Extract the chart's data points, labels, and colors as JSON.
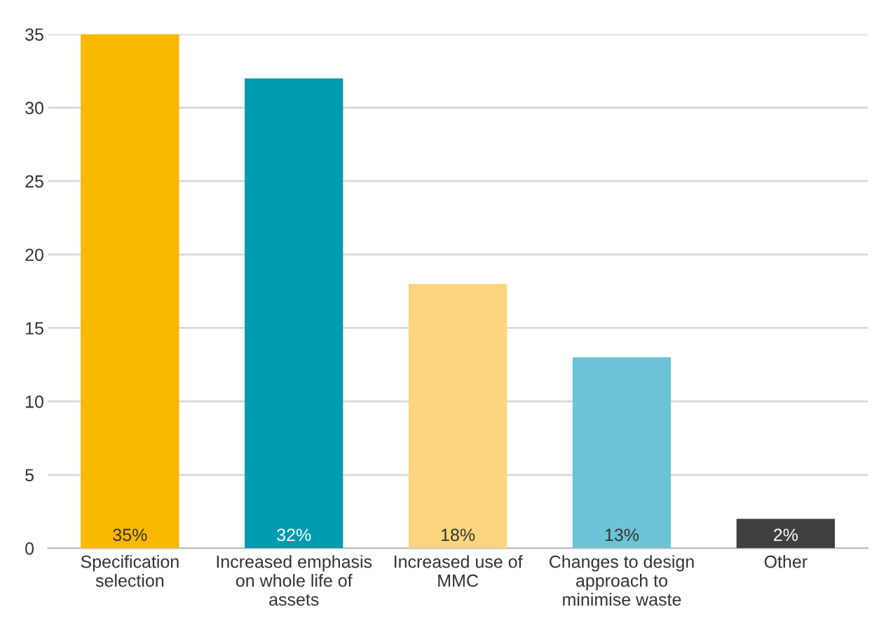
{
  "chart_data": {
    "type": "bar",
    "categories": [
      "Specification\nselection",
      "Increased emphasis\non whole life of\nassets",
      "Increased use of\nMMC",
      "Changes to design\napproach to\nminimise waste",
      "Other"
    ],
    "values": [
      35,
      32,
      18,
      13,
      2
    ],
    "colors": [
      "#fbb800",
      "#009bb0",
      "#fdd57e",
      "#6cc3d5",
      "#404040"
    ],
    "value_labels": [
      "35%",
      "32%",
      "18%",
      "13%",
      "2%"
    ],
    "ylim": [
      0,
      35
    ],
    "yticks": [
      0,
      5,
      10,
      15,
      20,
      25,
      30,
      35
    ],
    "grid": "y"
  }
}
